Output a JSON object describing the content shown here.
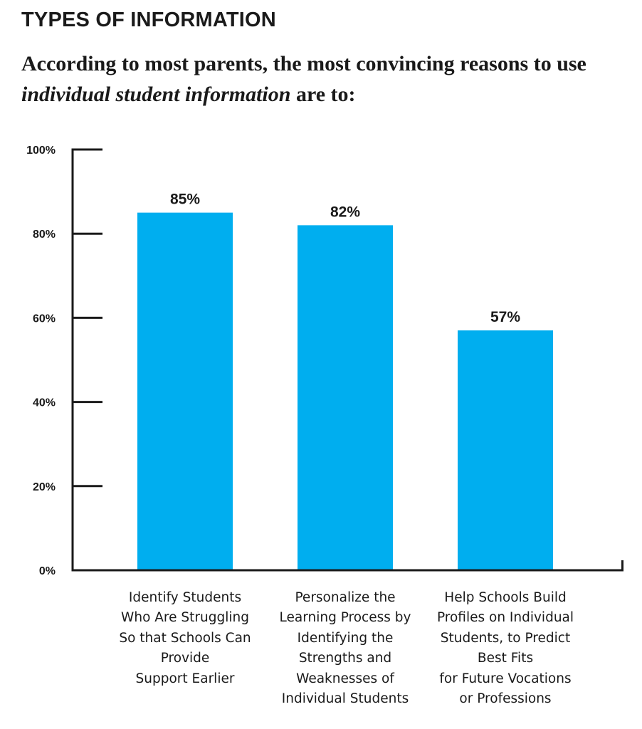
{
  "header": {
    "title": "TYPES OF INFORMATION"
  },
  "subtitle": {
    "part1": "According to most parents, the most convincing reasons to use ",
    "emphasis": "individual student information",
    "part2": " are to:"
  },
  "chart_data": {
    "type": "bar",
    "categories": [
      "Identify Students\nWho Are Struggling\nSo that Schools Can\nProvide\nSupport Earlier",
      "Personalize the\nLearning Process by\nIdentifying the\nStrengths and\nWeaknesses of\nIndividual Students",
      "Help Schools Build\nProfiles on Individual\nStudents, to Predict\nBest Fits\nfor Future Vocations\nor Professions"
    ],
    "values": [
      85,
      82,
      57
    ],
    "value_labels": [
      "85%",
      "82%",
      "57%"
    ],
    "ylim": [
      0,
      100
    ],
    "yticks": [
      0,
      20,
      40,
      60,
      80,
      100
    ],
    "ytick_labels": [
      "0%",
      "20%",
      "40%",
      "60%",
      "80%",
      "100%"
    ],
    "bar_color": "#00aeef",
    "axis_color": "#1a1a1a",
    "grid": false
  }
}
